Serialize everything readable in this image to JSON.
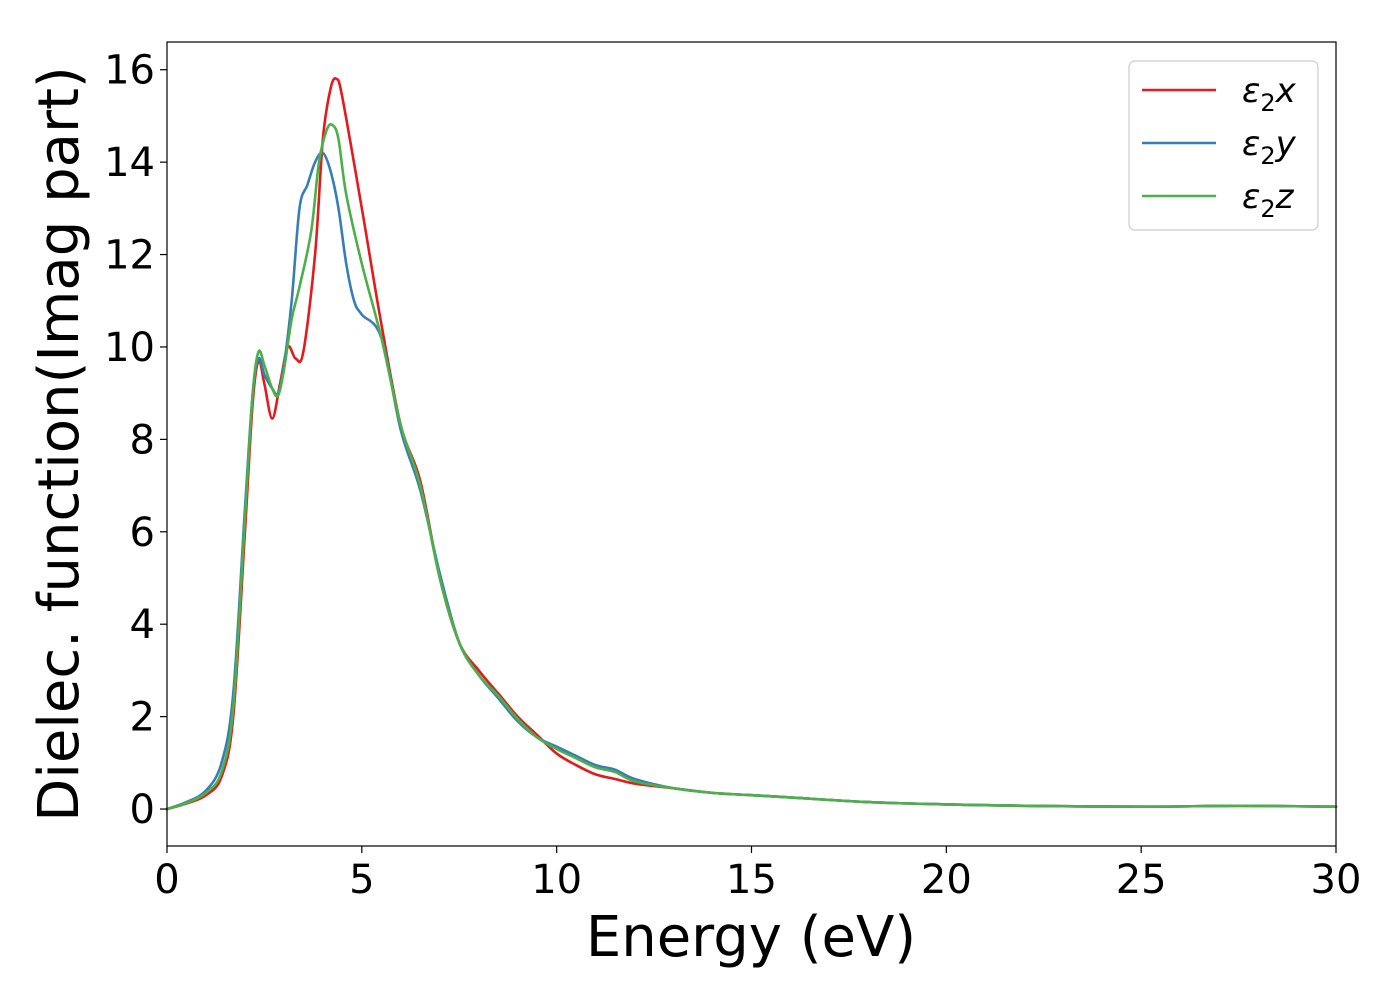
{
  "chart_data": {
    "type": "line",
    "xlabel": "Energy (eV)",
    "ylabel": "Dielec. function(Imag part)",
    "xlim": [
      0,
      30
    ],
    "ylim": [
      -0.8,
      16.6
    ],
    "xticks": [
      0,
      5,
      10,
      15,
      20,
      25,
      30
    ],
    "yticks": [
      0,
      2,
      4,
      6,
      8,
      10,
      12,
      14,
      16
    ],
    "grid": false,
    "legend_position": "top-right",
    "series": [
      {
        "name": "ε2x",
        "name_base": "ε",
        "name_sub": "2",
        "name_suffix": "x",
        "color": "#e41a1c",
        "x": [
          0,
          0.5,
          1.0,
          1.4,
          1.7,
          2.0,
          2.2,
          2.35,
          2.5,
          2.7,
          2.9,
          3.1,
          3.3,
          3.5,
          3.8,
          4.0,
          4.2,
          4.35,
          4.5,
          5.0,
          5.5,
          6.0,
          6.5,
          7.0,
          7.5,
          8.0,
          8.5,
          9.0,
          9.5,
          10.0,
          10.5,
          11.0,
          11.5,
          12.0,
          13.0,
          14.0,
          15.0,
          16.0,
          18.0,
          20.0,
          22.0,
          25.0,
          27.5,
          30.0
        ],
        "y": [
          0.0,
          0.12,
          0.3,
          0.7,
          2.0,
          6.0,
          8.8,
          9.7,
          9.2,
          8.45,
          9.2,
          10.0,
          9.75,
          9.9,
          12.0,
          14.5,
          15.6,
          15.8,
          15.4,
          13.0,
          10.5,
          8.3,
          7.1,
          5.0,
          3.6,
          3.0,
          2.5,
          2.0,
          1.6,
          1.2,
          0.95,
          0.75,
          0.65,
          0.55,
          0.45,
          0.35,
          0.3,
          0.25,
          0.15,
          0.1,
          0.07,
          0.05,
          0.07,
          0.05
        ]
      },
      {
        "name": "ε2y",
        "name_base": "ε",
        "name_sub": "2",
        "name_suffix": "y",
        "color": "#377eb8",
        "x": [
          0,
          0.5,
          1.0,
          1.4,
          1.7,
          2.0,
          2.2,
          2.35,
          2.5,
          2.7,
          2.85,
          3.0,
          3.2,
          3.4,
          3.6,
          3.8,
          4.0,
          4.2,
          4.4,
          4.6,
          4.8,
          5.0,
          5.5,
          6.0,
          6.5,
          7.0,
          7.5,
          8.0,
          8.5,
          9.0,
          9.5,
          10.0,
          10.5,
          11.0,
          11.5,
          12.0,
          13.0,
          14.0,
          15.0,
          16.0,
          18.0,
          20.0,
          22.0,
          25.0,
          27.5,
          30.0
        ],
        "y": [
          0.0,
          0.15,
          0.4,
          1.0,
          2.5,
          6.5,
          9.0,
          9.75,
          9.4,
          9.1,
          9.0,
          9.6,
          11.0,
          13.0,
          13.5,
          14.0,
          14.2,
          13.8,
          13.0,
          11.8,
          11.0,
          10.7,
          10.2,
          8.2,
          6.9,
          5.1,
          3.6,
          2.9,
          2.4,
          1.9,
          1.55,
          1.35,
          1.15,
          0.95,
          0.85,
          0.65,
          0.45,
          0.35,
          0.3,
          0.25,
          0.15,
          0.1,
          0.07,
          0.05,
          0.07,
          0.05
        ]
      },
      {
        "name": "ε2z",
        "name_base": "ε",
        "name_sub": "2",
        "name_suffix": "z",
        "color": "#4daf4a",
        "x": [
          0,
          0.5,
          1.0,
          1.4,
          1.7,
          2.0,
          2.2,
          2.35,
          2.5,
          2.7,
          2.85,
          3.0,
          3.2,
          3.4,
          3.7,
          3.9,
          4.1,
          4.25,
          4.4,
          4.6,
          5.0,
          5.5,
          6.0,
          6.5,
          7.0,
          7.5,
          8.0,
          8.5,
          9.0,
          9.5,
          10.0,
          10.5,
          11.0,
          11.5,
          12.0,
          13.0,
          14.0,
          15.0,
          16.0,
          18.0,
          20.0,
          22.0,
          25.0,
          27.5,
          30.0
        ],
        "y": [
          0.0,
          0.13,
          0.35,
          0.8,
          2.2,
          6.3,
          9.0,
          9.9,
          9.6,
          9.1,
          8.95,
          9.5,
          10.6,
          11.3,
          12.5,
          14.0,
          14.7,
          14.8,
          14.5,
          13.3,
          11.8,
          10.2,
          8.3,
          7.0,
          5.0,
          3.6,
          2.9,
          2.45,
          1.95,
          1.55,
          1.3,
          1.1,
          0.9,
          0.8,
          0.6,
          0.45,
          0.35,
          0.3,
          0.25,
          0.15,
          0.1,
          0.07,
          0.05,
          0.07,
          0.05
        ]
      }
    ]
  }
}
